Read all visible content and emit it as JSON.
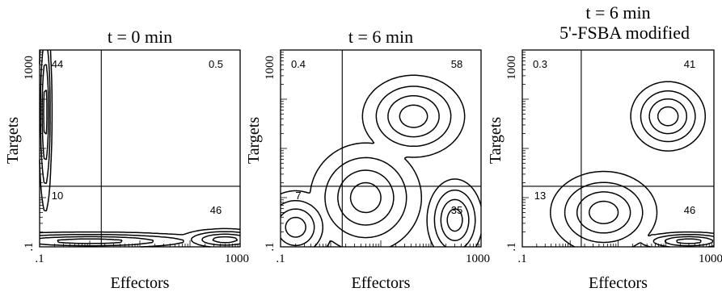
{
  "chart_data": [
    {
      "type": "contour",
      "title": "t = 0 min",
      "xlabel": "Effectors",
      "ylabel": "Targets",
      "scale": "log",
      "xlim": [
        0.1,
        1000
      ],
      "ylim": [
        0.1,
        1000
      ],
      "xticks": [
        ".1",
        "1000"
      ],
      "yticks": [
        ".1",
        "1000"
      ],
      "gate": {
        "x": 1.7,
        "y": 1.7
      },
      "quadrants": {
        "upper_left": "44",
        "upper_right": "0.5",
        "lower_left": "10",
        "lower_right": "46"
      },
      "populations": [
        {
          "cx": 0.13,
          "cy": 55,
          "sx": 0.07,
          "sy": 1.1,
          "levels": [
            1.0,
            0.65,
            0.35
          ]
        },
        {
          "cx": 500,
          "cy": 0.14,
          "sx": 0.5,
          "sy": 0.12,
          "levels": [
            1.0,
            0.6
          ]
        },
        {
          "cx": 1.0,
          "cy": 0.13,
          "sx": 1.4,
          "sy": 0.1,
          "levels": [
            1.0
          ]
        }
      ]
    },
    {
      "type": "contour",
      "title": "t = 6 min",
      "xlabel": "Effectors",
      "ylabel": "Targets",
      "scale": "log",
      "xlim": [
        0.1,
        1000
      ],
      "ylim": [
        0.1,
        1000
      ],
      "xticks": [
        ".1",
        "1000"
      ],
      "yticks": [
        ".1",
        "1000"
      ],
      "gate": {
        "x": 1.7,
        "y": 1.7
      },
      "quadrants": {
        "upper_left": "0.4",
        "upper_right": "58",
        "lower_left": "7",
        "lower_right": "35"
      },
      "populations": [
        {
          "cx": 45,
          "cy": 45,
          "sx": 0.55,
          "sy": 0.45,
          "levels": [
            1.0,
            0.7,
            0.45,
            0.25
          ]
        },
        {
          "cx": 300,
          "cy": 0.35,
          "sx": 0.3,
          "sy": 0.45,
          "levels": [
            1.0,
            0.6
          ]
        },
        {
          "cx": 5,
          "cy": 1.0,
          "sx": 0.6,
          "sy": 0.6,
          "levels": [
            1.0
          ]
        },
        {
          "cx": 0.2,
          "cy": 0.25,
          "sx": 0.4,
          "sy": 0.4,
          "levels": [
            1.0
          ]
        }
      ]
    },
    {
      "type": "contour",
      "title": "t = 6 min",
      "subtitle": "5'-FSBA modified",
      "xlabel": "Effectors",
      "ylabel": "Targets",
      "scale": "log",
      "xlim": [
        0.1,
        1000
      ],
      "ylim": [
        0.1,
        1000
      ],
      "xticks": [
        ".1",
        "1000"
      ],
      "yticks": [
        ".1",
        "1000"
      ],
      "gate": {
        "x": 1.7,
        "y": 1.7
      },
      "quadrants": {
        "upper_left": "0.3",
        "upper_right": "41",
        "lower_left": "13",
        "lower_right": "46"
      },
      "populations": [
        {
          "cx": 110,
          "cy": 45,
          "sx": 0.42,
          "sy": 0.38,
          "levels": [
            1.0,
            0.65,
            0.35,
            0.12
          ]
        },
        {
          "cx": 5,
          "cy": 0.5,
          "sx": 0.6,
          "sy": 0.45,
          "levels": [
            1.0,
            0.6
          ]
        },
        {
          "cx": 300,
          "cy": 0.13,
          "sx": 0.55,
          "sy": 0.1,
          "levels": [
            1.0,
            0.6
          ]
        }
      ]
    }
  ]
}
